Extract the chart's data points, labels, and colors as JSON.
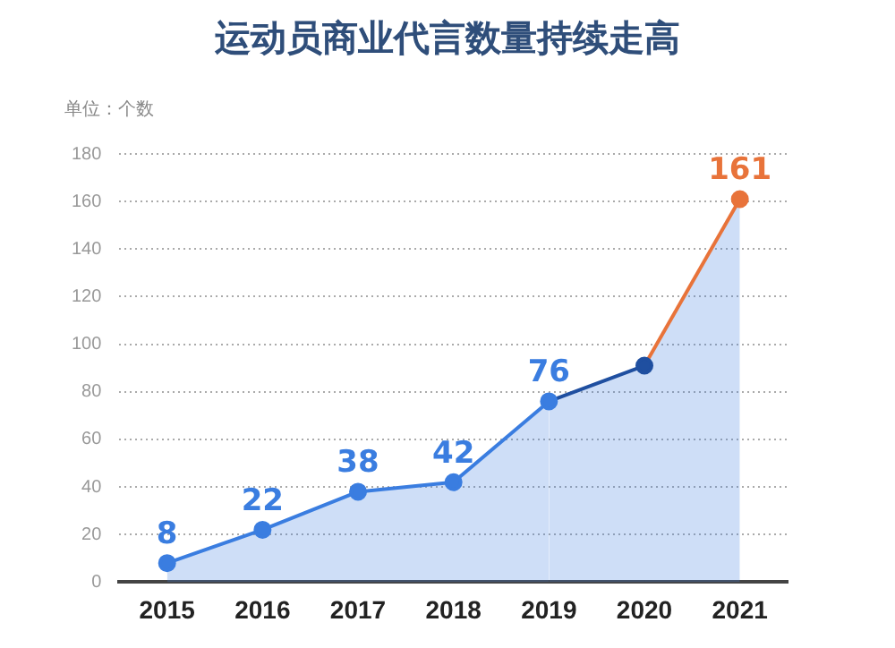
{
  "chart_data": {
    "type": "area",
    "title": "运动员商业代言数量持续走高",
    "ylabel": "单位：个数",
    "categories": [
      "2015",
      "2016",
      "2017",
      "2018",
      "2019",
      "2020",
      "2021"
    ],
    "series": [
      {
        "color": "#3a7de0",
        "colors": [
          "#3a7de0",
          "#3a7de0",
          "#3a7de0",
          "#3a7de0",
          "#3a7de0",
          "#1f4fa0",
          "#e8733a"
        ],
        "values": [
          8,
          22,
          38,
          42,
          76,
          91,
          161
        ],
        "value_labels": [
          "8",
          "22",
          "38",
          "42",
          "76",
          null,
          "161"
        ]
      }
    ],
    "ylim": [
      0,
      180
    ],
    "yticks": [
      0,
      20,
      40,
      60,
      80,
      100,
      120,
      140,
      160,
      180
    ],
    "grid": "y",
    "marker": "circle",
    "line_style": "solid"
  }
}
